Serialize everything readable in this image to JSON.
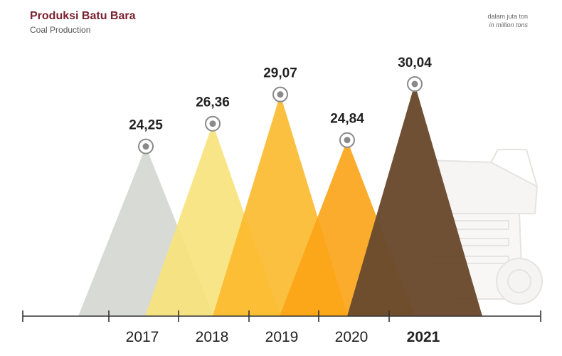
{
  "header": {
    "title": "Produksi Batu Bara",
    "subtitle": "Coal Production",
    "unit_id": "dalam juta ton",
    "unit_en": "in million tons"
  },
  "chart_data": {
    "type": "area",
    "title": "Produksi Batu Bara",
    "subtitle": "Coal Production",
    "unit": "dalam juta ton / in million tons",
    "categories": [
      "2017",
      "2018",
      "2019",
      "2020",
      "2021"
    ],
    "values": [
      24.25,
      26.36,
      29.07,
      24.84,
      30.04
    ],
    "value_labels": [
      "24,25",
      "26,36",
      "29,07",
      "24,84",
      "30,04"
    ],
    "highlight_category": "2021",
    "colors": [
      "#d4d6d2",
      "#f7e27a",
      "#fbb92b",
      "#fca316",
      "#6a4a2d"
    ],
    "grid": false,
    "legend": "none"
  }
}
